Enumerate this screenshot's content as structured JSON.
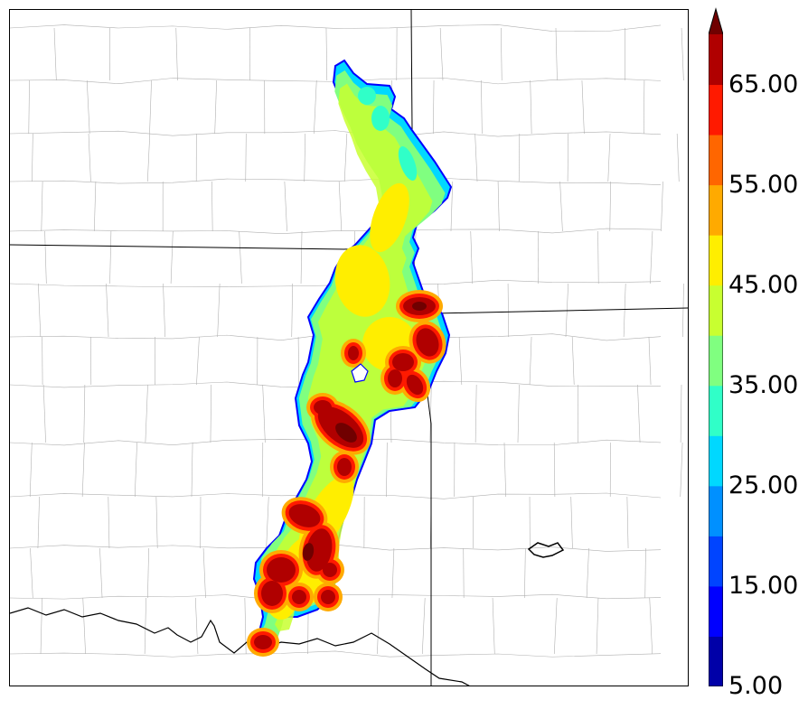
{
  "colorbar": {
    "levels": [
      5,
      10,
      15,
      20,
      25,
      30,
      35,
      40,
      45,
      50,
      55,
      60,
      65,
      70
    ],
    "colors": [
      "#0000a8",
      "#0000ff",
      "#0044ff",
      "#0090ff",
      "#00d8ff",
      "#30ffc8",
      "#80ff80",
      "#c8ff30",
      "#ffee00",
      "#ffaa00",
      "#ff6600",
      "#ff1a00",
      "#b00000",
      "#700000"
    ],
    "tick_labels": [
      "5.00",
      "15.00",
      "25.00",
      "35.00",
      "45.00",
      "55.00",
      "65.00"
    ]
  },
  "map": {
    "colors": {
      "state_border": "#000000",
      "county_border": "#b0b0b0",
      "river": "#222222",
      "swath_edge": "#0000ff"
    }
  }
}
